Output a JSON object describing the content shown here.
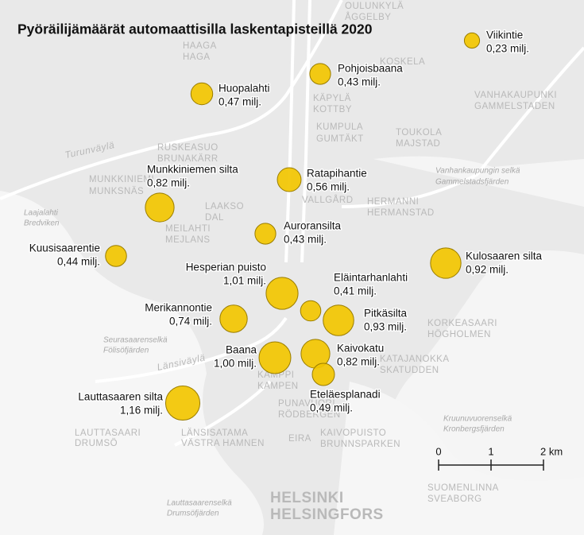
{
  "title": "Pyöräilijämäärät automaattisilla laskentapisteillä 2020",
  "points": [
    {
      "name": "Viikintie",
      "value": 0.23,
      "value_label": "0,23 milj."
    },
    {
      "name": "Pohjoisbaana",
      "value": 0.43,
      "value_label": "0,43 milj."
    },
    {
      "name": "Huopalahti",
      "value": 0.47,
      "value_label": "0,47 milj."
    },
    {
      "name": "Ratapihantie",
      "value": 0.56,
      "value_label": "0,56 milj."
    },
    {
      "name": "Munkkiniemen silta",
      "value": 0.82,
      "value_label": "0,82 milj."
    },
    {
      "name": "Auroransilta",
      "value": 0.43,
      "value_label": "0,43 milj."
    },
    {
      "name": "Kuusisaarentie",
      "value": 0.44,
      "value_label": "0,44 milj."
    },
    {
      "name": "Kulosaaren silta",
      "value": 0.92,
      "value_label": "0,92 milj."
    },
    {
      "name": "Hesperian puisto",
      "value": 1.01,
      "value_label": "1,01 milj."
    },
    {
      "name": "Eläintarhanlahti",
      "value": 0.41,
      "value_label": "0,41 milj."
    },
    {
      "name": "Merikannontie",
      "value": 0.74,
      "value_label": "0,74 milj."
    },
    {
      "name": "Pitkäsilta",
      "value": 0.93,
      "value_label": "0,93 milj."
    },
    {
      "name": "Baana",
      "value": 1.0,
      "value_label": "1,00 milj."
    },
    {
      "name": "Kaivokatu",
      "value": 0.82,
      "value_label": "0,82 milj."
    },
    {
      "name": "Eteläesplanadi",
      "value": 0.49,
      "value_label": "0,49 milj."
    },
    {
      "name": "Lauttasaaren silta",
      "value": 1.16,
      "value_label": "1,16 milj."
    }
  ],
  "scale": {
    "ticks": [
      {
        "value": 0,
        "label": "0"
      },
      {
        "value": 1,
        "label": "1"
      },
      {
        "value": 2,
        "label": "2 km"
      }
    ]
  },
  "places": [
    "OULUNKYLÄ",
    "ÅGGELBY",
    "HAAGA",
    "HAGA",
    "KOSKELA",
    "VANHAKAUPUNKI",
    "GAMMELSTADEN",
    "KÄPYLÄ",
    "KOTTBY",
    "KUMPULA",
    "GUMTÄKT",
    "TOUKOLA",
    "MAJSTAD",
    "RUSKEASUO",
    "BRUNAKÄRR",
    "MUNKKINIEMI",
    "MUNKSNÄS",
    "HERMANNI",
    "HERMANSTAD",
    "LAAKSO",
    "DAL",
    "MEILAHTI",
    "MEJLANS",
    "VALLGÅRD",
    "KORKEASAARI",
    "HÖGHOLMEN",
    "KATAJANOKKA",
    "SKATUDDEN",
    "KAMPPI",
    "KAMPEN",
    "PUNAVUORI",
    "RÖDBERGEN",
    "EIRA",
    "KAIVOPUISTO",
    "BRUNNSPARKEN",
    "LAUTTASAARI",
    "DRUMSÖ",
    "LÄNSISATAMA",
    "VÄSTRA HAMNEN",
    "SUOMENLINNA",
    "SVEABORG",
    "HELSINKI",
    "HELSINGFORS",
    "Turunväylä",
    "Länsiväylä",
    "Laajalahti",
    "Bredviken",
    "Seurasaarenselkä",
    "Fölisöfjärden",
    "Vanhankaupungin selkä",
    "Gammelstadsfjärden",
    "Kruunuvuorenselkä",
    "Kronbergsfjärden",
    "Lauttasaarenselkä",
    "Drumsöfjärden"
  ]
}
